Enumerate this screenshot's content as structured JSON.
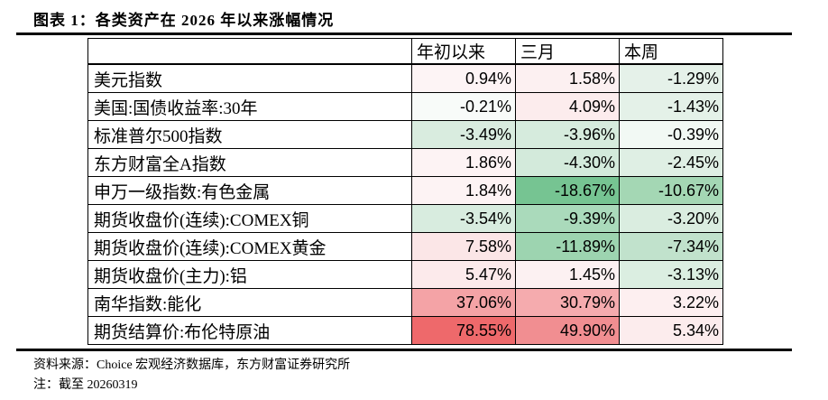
{
  "title": "图表 1：各类资产在 2026 年以来涨幅情况",
  "table": {
    "col_headers": [
      "年初以来",
      "三月",
      "本周"
    ],
    "rows": [
      {
        "label": "美元指数",
        "cells": [
          {
            "text": "0.94%",
            "bg": "#fdf4f5"
          },
          {
            "text": "1.58%",
            "bg": "#fcf0f1"
          },
          {
            "text": "-1.29%",
            "bg": "#e5f1e9"
          }
        ]
      },
      {
        "label": "美国:国债收益率:30年",
        "cells": [
          {
            "text": "-0.21%",
            "bg": "#f8fbf9"
          },
          {
            "text": "4.09%",
            "bg": "#fceced"
          },
          {
            "text": "-1.43%",
            "bg": "#e4f1e8"
          }
        ]
      },
      {
        "label": "标准普尔500指数",
        "cells": [
          {
            "text": "-3.49%",
            "bg": "#d9ecdf"
          },
          {
            "text": "-3.96%",
            "bg": "#d6ebdd"
          },
          {
            "text": "-0.39%",
            "bg": "#f2f9f4"
          }
        ]
      },
      {
        "label": "东方财富全A指数",
        "cells": [
          {
            "text": "1.86%",
            "bg": "#fdf3f4"
          },
          {
            "text": "-4.30%",
            "bg": "#d3eadb"
          },
          {
            "text": "-2.45%",
            "bg": "#dfefe4"
          }
        ]
      },
      {
        "label": "申万一级指数:有色金属",
        "cells": [
          {
            "text": "1.84%",
            "bg": "#fdf3f4"
          },
          {
            "text": "-18.67%",
            "bg": "#76c492"
          },
          {
            "text": "-10.67%",
            "bg": "#a4d7b4"
          }
        ]
      },
      {
        "label": "期货收盘价(连续):COMEX铜",
        "cells": [
          {
            "text": "-3.54%",
            "bg": "#d8ecdf"
          },
          {
            "text": "-9.39%",
            "bg": "#aadabb"
          },
          {
            "text": "-3.20%",
            "bg": "#daede0"
          }
        ]
      },
      {
        "label": "期货收盘价(连续):COMEX黄金",
        "cells": [
          {
            "text": "7.58%",
            "bg": "#fbe6e7"
          },
          {
            "text": "-11.89%",
            "bg": "#9dd4b0"
          },
          {
            "text": "-7.34%",
            "bg": "#c1e2cc"
          }
        ]
      },
      {
        "label": "期货收盘价(主力):铝",
        "cells": [
          {
            "text": "5.47%",
            "bg": "#fceaeb"
          },
          {
            "text": "1.45%",
            "bg": "#fcf1f2"
          },
          {
            "text": "-3.13%",
            "bg": "#dbeee1"
          }
        ]
      },
      {
        "label": "南华指数:能化",
        "cells": [
          {
            "text": "37.06%",
            "bg": "#f4a3a6"
          },
          {
            "text": "30.79%",
            "bg": "#f5abae"
          },
          {
            "text": "3.22%",
            "bg": "#fdeff0"
          }
        ]
      },
      {
        "label": "期货结算价:布伦特原油",
        "cells": [
          {
            "text": "78.55%",
            "bg": "#ee696b"
          },
          {
            "text": "49.90%",
            "bg": "#f18e91"
          },
          {
            "text": "5.34%",
            "bg": "#fceced"
          }
        ]
      }
    ]
  },
  "chart_data": {
    "type": "table",
    "title": "图表 1：各类资产在 2026 年以来涨幅情况",
    "columns": [
      "年初以来",
      "三月",
      "本周"
    ],
    "rows": [
      {
        "label": "美元指数",
        "values": [
          0.94,
          1.58,
          -1.29
        ]
      },
      {
        "label": "美国:国债收益率:30年",
        "values": [
          -0.21,
          4.09,
          -1.43
        ]
      },
      {
        "label": "标准普尔500指数",
        "values": [
          -3.49,
          -3.96,
          -0.39
        ]
      },
      {
        "label": "东方财富全A指数",
        "values": [
          1.86,
          -4.3,
          -2.45
        ]
      },
      {
        "label": "申万一级指数:有色金属",
        "values": [
          1.84,
          -18.67,
          -10.67
        ]
      },
      {
        "label": "期货收盘价(连续):COMEX铜",
        "values": [
          -3.54,
          -9.39,
          -3.2
        ]
      },
      {
        "label": "期货收盘价(连续):COMEX黄金",
        "values": [
          7.58,
          -11.89,
          -7.34
        ]
      },
      {
        "label": "期货收盘价(主力):铝",
        "values": [
          5.47,
          1.45,
          -3.13
        ]
      },
      {
        "label": "南华指数:能化",
        "values": [
          37.06,
          30.79,
          3.22
        ]
      },
      {
        "label": "期货结算价:布伦特原油",
        "values": [
          78.55,
          49.9,
          5.34
        ]
      }
    ],
    "colorscale": {
      "positive": "#ee696b",
      "negative": "#76c492",
      "neutral": "#ffffff"
    }
  },
  "footer": {
    "source": "资料来源：Choice 宏观经济数据库，东方财富证券研究所",
    "note": "注：截至 20260319"
  }
}
